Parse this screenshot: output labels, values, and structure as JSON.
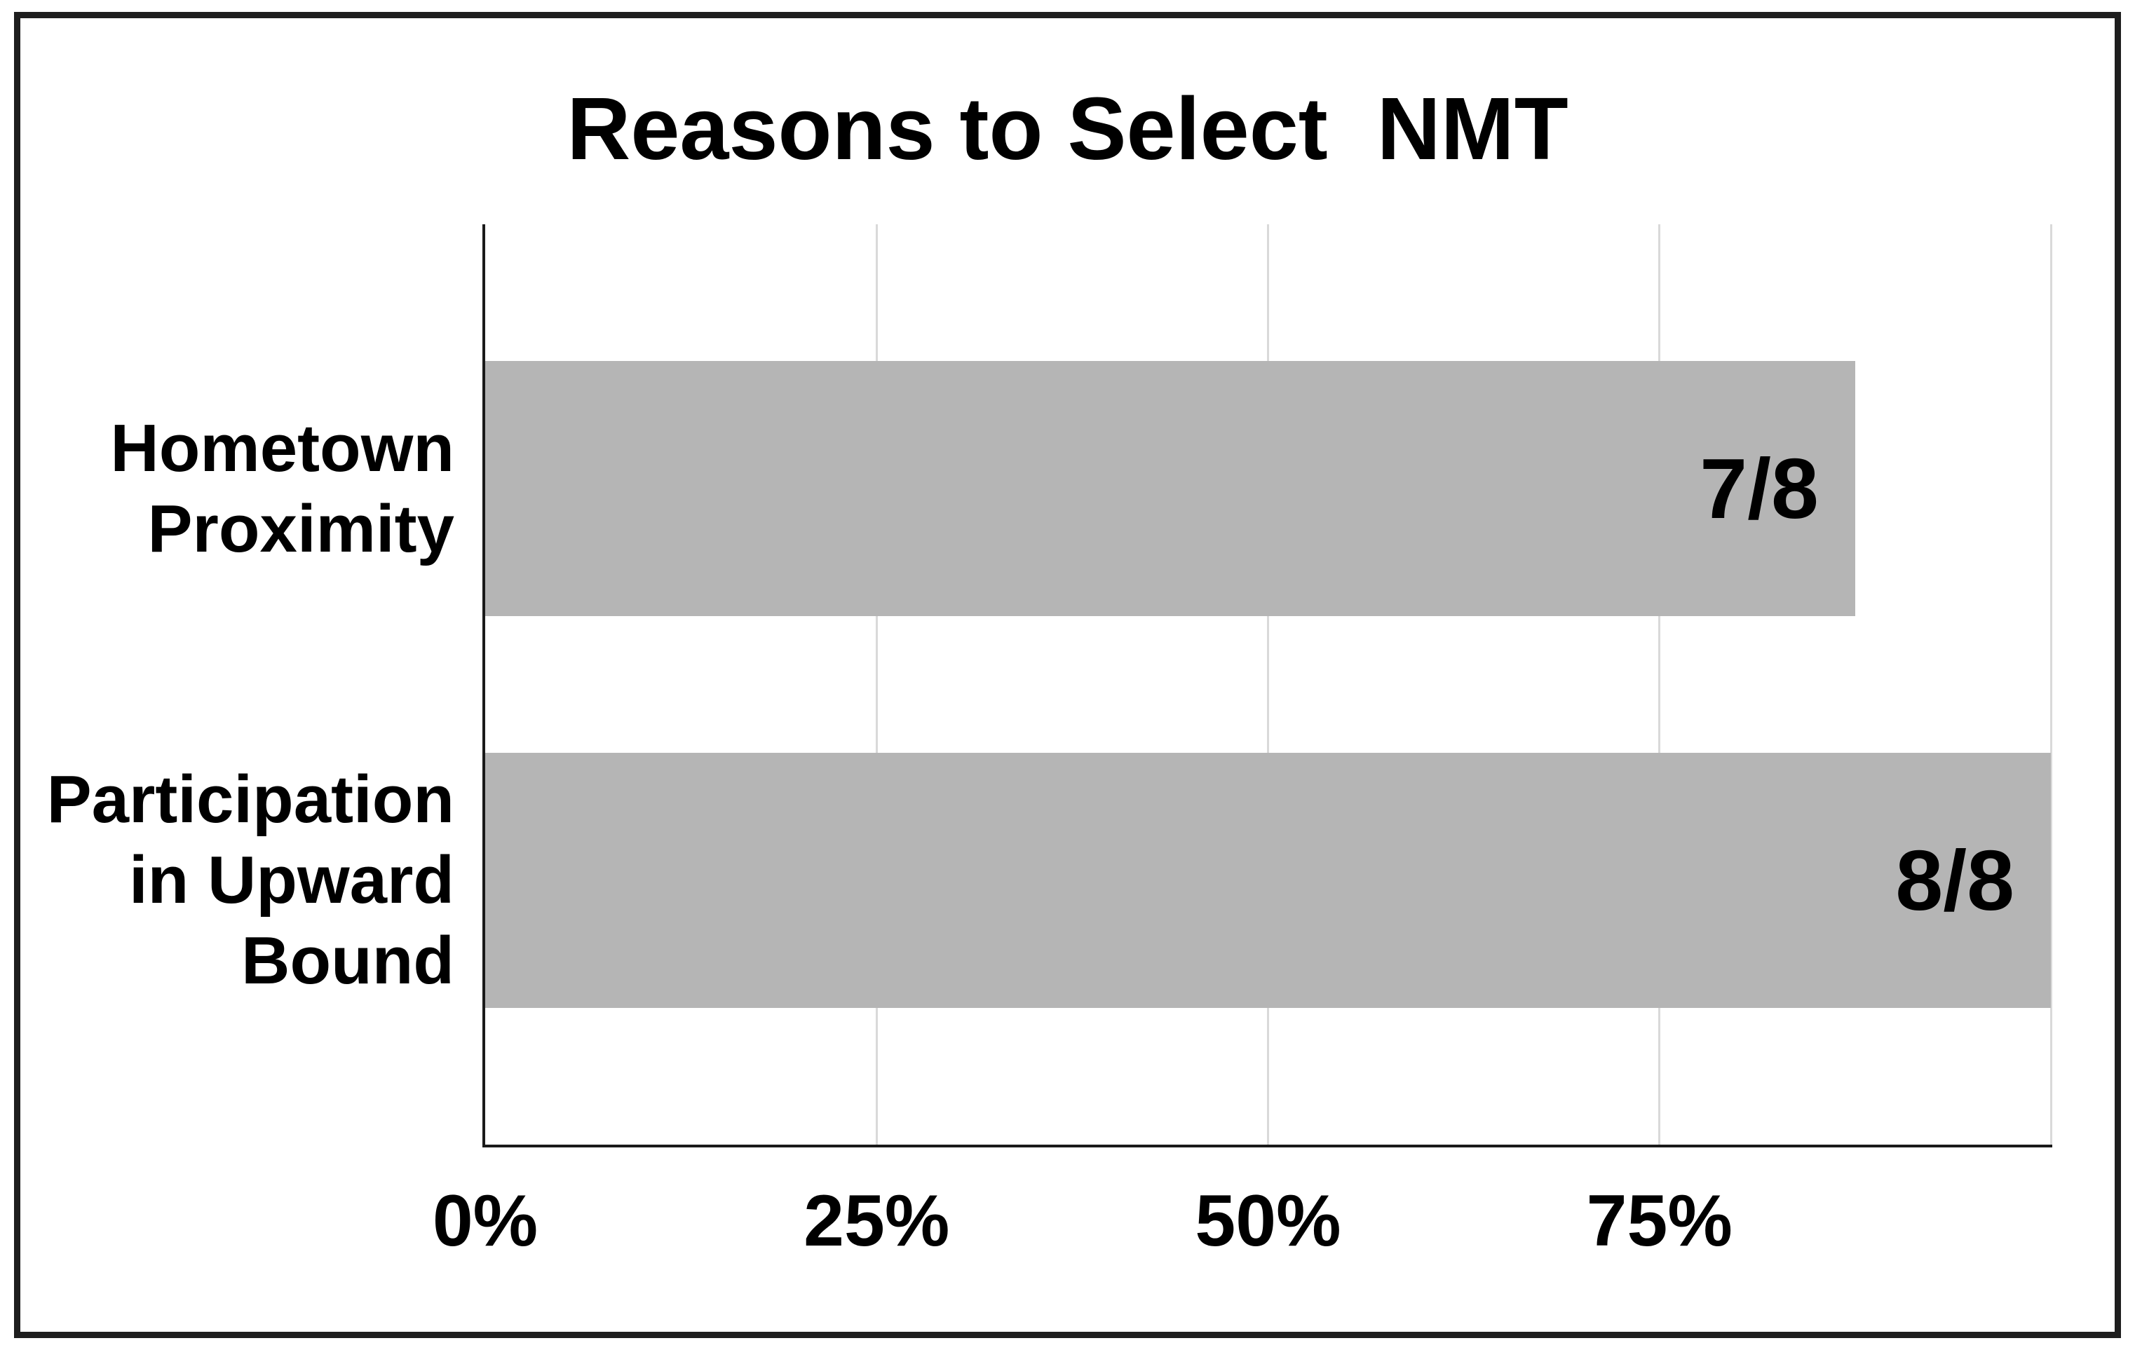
{
  "page": {
    "background": "#ffffff",
    "frame_color": "#1e1e1e"
  },
  "chart_data": {
    "type": "bar",
    "orientation": "horizontal",
    "title": "Reasons to Select  NMT",
    "categories": [
      "Hometown\nProximity",
      "Participation\nin Upward\nBound"
    ],
    "values": [
      87.5,
      100
    ],
    "value_labels": [
      "7/8",
      "8/8"
    ],
    "value_label_position": "inside-end",
    "xlabel": "",
    "ylabel": "",
    "xlim": [
      0,
      100
    ],
    "xtick_values": [
      0,
      25,
      50,
      75
    ],
    "xtick_labels": [
      "0%",
      "25%",
      "50%",
      "75%"
    ],
    "gridline_values": [
      25,
      50,
      75,
      100
    ],
    "grid": "vertical",
    "legend": "none",
    "colors": {
      "bar": "#b5b5b5",
      "gridline": "#d9d9d9",
      "axis": "#1a1a1a",
      "text": "#000000",
      "frame": "#1e1e1e"
    }
  }
}
